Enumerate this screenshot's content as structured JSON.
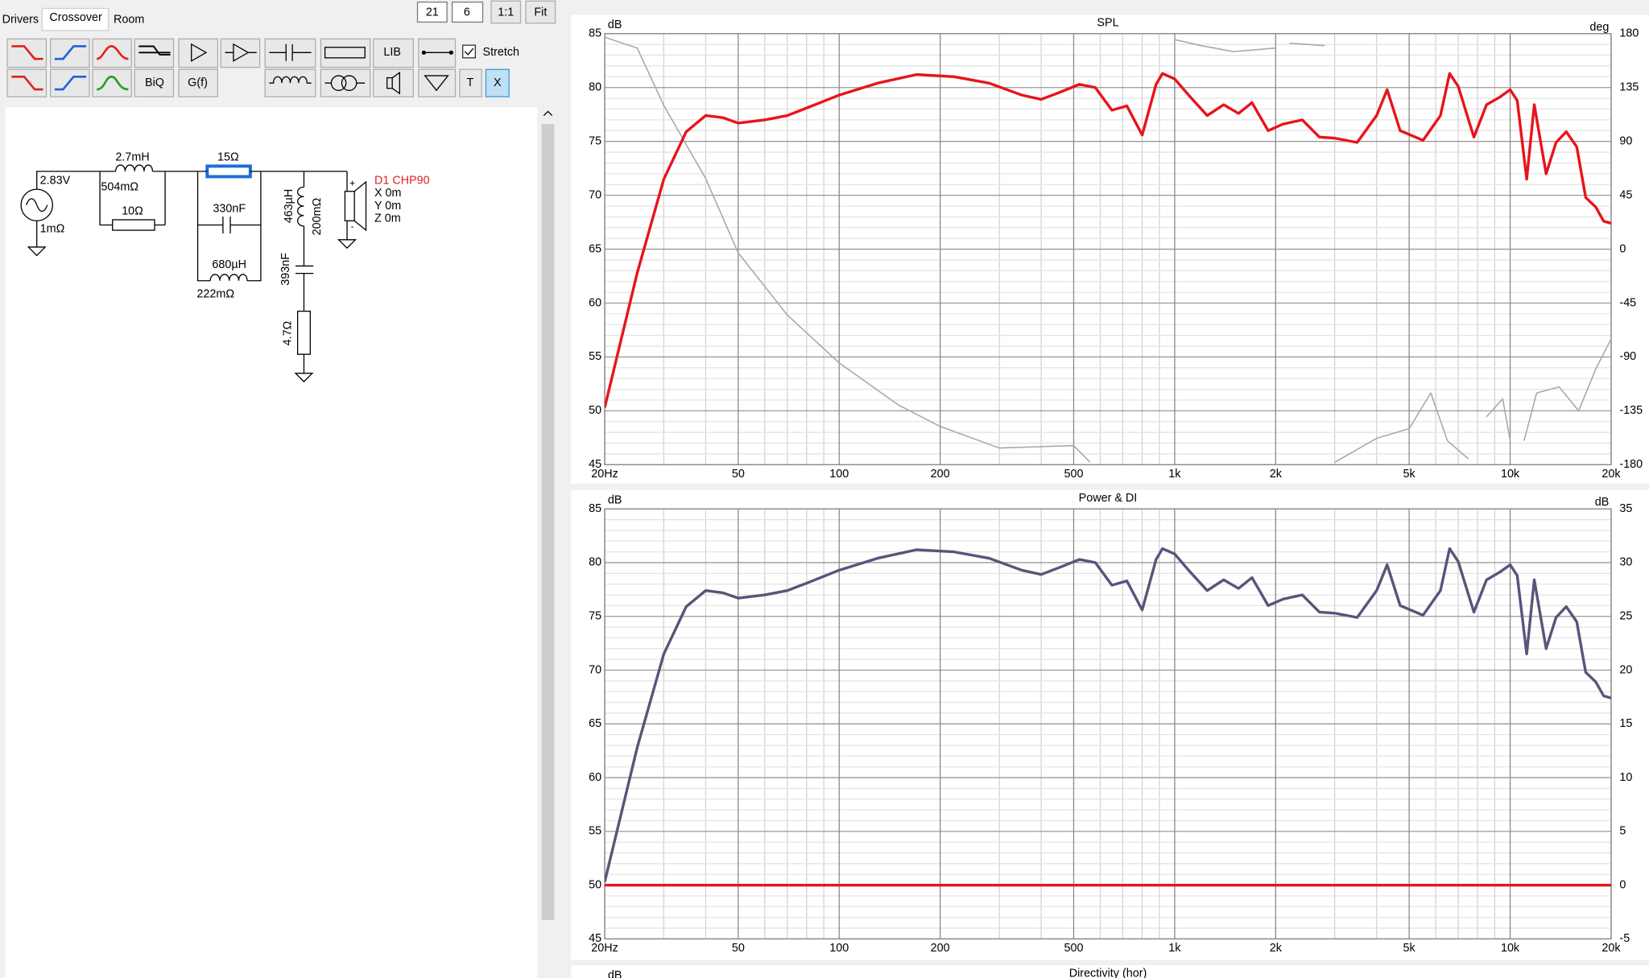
{
  "tabs": [
    "Drivers",
    "Crossover",
    "Room"
  ],
  "toolbar": {
    "inputs": [
      "21",
      "6"
    ],
    "buttons": [
      "1:1",
      "Fit"
    ],
    "tool_labels": [
      "LIB",
      "BiQ",
      "G(f)",
      "T",
      "X"
    ],
    "checkbox": "Stretch"
  },
  "circuit": {
    "source": "2.83V",
    "source_r": "1mΩ",
    "l1": "2.7mH",
    "l1_r": "504mΩ",
    "r1": "10Ω",
    "r2": "15Ω",
    "c1": "330nF",
    "l2": "680µH",
    "l2_r": "222mΩ",
    "l3": "463µH",
    "l3_r": "200mΩ",
    "c2": "393nF",
    "r3": "4.7Ω",
    "driver": "D1 CHP90",
    "pos": [
      "X 0m",
      "Y 0m",
      "Z 0m"
    ]
  },
  "chart_data": [
    {
      "type": "line",
      "title": "SPL",
      "y_unit": "dB",
      "y2_unit": "deg",
      "xscale": "log",
      "xlim": [
        20,
        20000
      ],
      "xticks": [
        {
          "value": 20,
          "label": "20Hz"
        },
        50,
        100,
        200,
        500,
        {
          "value": 1000,
          "label": "1k"
        },
        {
          "value": 2000,
          "label": "2k"
        },
        {
          "value": 5000,
          "label": "5k"
        },
        {
          "value": 10000,
          "label": "10k"
        },
        {
          "value": 20000,
          "label": "20k"
        }
      ],
      "ylim": [
        45,
        85
      ],
      "yticks": [
        45,
        50,
        55,
        60,
        65,
        70,
        75,
        80,
        85
      ],
      "y2lim": [
        -180,
        180
      ],
      "y2ticks": [
        -180,
        -135,
        -90,
        -45,
        0,
        45,
        90,
        135,
        180
      ],
      "grid": true,
      "minor_grid": true,
      "series": [
        {
          "color": "#a8a8a8",
          "axis": "y2",
          "x": [
            20,
            25,
            30,
            40,
            50,
            70,
            100,
            150,
            200,
            300,
            500,
            560,
            600,
            1000,
            1200,
            1500,
            2000,
            2100,
            2200,
            2800,
            2900,
            3000,
            4000,
            5000,
            5800,
            6500,
            7500,
            8000,
            8500,
            9500,
            10000,
            10500,
            11000,
            12000,
            14000,
            16000,
            18000,
            20000
          ],
          "values": [
            177,
            168,
            120,
            59,
            -3,
            -55,
            -95,
            -130,
            -148,
            -166,
            -164,
            -178,
            null,
            175,
            170,
            165,
            168,
            null,
            172,
            170,
            null,
            -178,
            -158,
            -150,
            -120,
            -160,
            -175,
            null,
            -140,
            -125,
            -160,
            null,
            -160,
            -120,
            -115,
            -135,
            -100,
            -75
          ]
        },
        {
          "color": "#e8141b",
          "x": [
            20,
            25,
            30,
            35,
            40,
            45,
            50,
            60,
            70,
            80,
            100,
            130,
            170,
            220,
            280,
            350,
            400,
            450,
            520,
            580,
            650,
            720,
            800,
            880,
            920,
            1000,
            1100,
            1250,
            1400,
            1550,
            1700,
            1900,
            2100,
            2400,
            2700,
            3000,
            3500,
            4000,
            4300,
            4700,
            5500,
            6200,
            6600,
            7000,
            7800,
            8500,
            9300,
            10000,
            10500,
            11200,
            11800,
            12800,
            13700,
            14700,
            15800,
            16800,
            18000,
            19000,
            20000
          ],
          "values": [
            50.3,
            62.8,
            71.5,
            75.9,
            77.4,
            77.2,
            76.7,
            77,
            77.4,
            78.1,
            79.3,
            80.4,
            81.2,
            81,
            80.4,
            79.3,
            78.9,
            79.5,
            80.3,
            80,
            77.9,
            78.3,
            75.6,
            80.3,
            81.3,
            80.8,
            79.3,
            77.4,
            78.4,
            77.6,
            78.6,
            76,
            76.6,
            77,
            75.4,
            75.3,
            74.9,
            77.4,
            79.8,
            76,
            75.1,
            77.4,
            81.3,
            80.1,
            75.4,
            78.4,
            79.1,
            79.8,
            78.8,
            71.5,
            78.4,
            72,
            74.9,
            75.9,
            74.5,
            69.8,
            68.9,
            67.6,
            67.4
          ]
        }
      ]
    },
    {
      "type": "line",
      "title": "Power & DI",
      "y_unit": "dB",
      "y2_unit": "dB",
      "xscale": "log",
      "xlim": [
        20,
        20000
      ],
      "xticks": [
        {
          "value": 20,
          "label": "20Hz"
        },
        50,
        100,
        200,
        500,
        {
          "value": 1000,
          "label": "1k"
        },
        {
          "value": 2000,
          "label": "2k"
        },
        {
          "value": 5000,
          "label": "5k"
        },
        {
          "value": 10000,
          "label": "10k"
        },
        {
          "value": 20000,
          "label": "20k"
        }
      ],
      "ylim": [
        45,
        85
      ],
      "yticks": [
        45,
        50,
        55,
        60,
        65,
        70,
        75,
        80,
        85
      ],
      "y2lim": [
        -5,
        35
      ],
      "y2ticks": [
        -5,
        0,
        5,
        10,
        15,
        20,
        25,
        30,
        35
      ],
      "grid": true,
      "minor_grid": true,
      "series": [
        {
          "color": "#e8141b",
          "axis": "y2",
          "x": [
            20,
            20000
          ],
          "values": [
            0,
            0
          ]
        },
        {
          "color": "#56567a",
          "x": [
            20,
            25,
            30,
            35,
            40,
            45,
            50,
            60,
            70,
            80,
            100,
            130,
            170,
            220,
            280,
            350,
            400,
            450,
            520,
            580,
            650,
            720,
            800,
            880,
            920,
            1000,
            1100,
            1250,
            1400,
            1550,
            1700,
            1900,
            2100,
            2400,
            2700,
            3000,
            3500,
            4000,
            4300,
            4700,
            5500,
            6200,
            6600,
            7000,
            7800,
            8500,
            9300,
            10000,
            10500,
            11200,
            11800,
            12800,
            13700,
            14700,
            15800,
            16800,
            18000,
            19000,
            20000
          ],
          "values": [
            50.3,
            62.8,
            71.5,
            75.9,
            77.4,
            77.2,
            76.7,
            77,
            77.4,
            78.1,
            79.3,
            80.4,
            81.2,
            81,
            80.4,
            79.3,
            78.9,
            79.5,
            80.3,
            80,
            77.9,
            78.3,
            75.6,
            80.3,
            81.3,
            80.8,
            79.3,
            77.4,
            78.4,
            77.6,
            78.6,
            76,
            76.6,
            77,
            75.4,
            75.3,
            74.9,
            77.4,
            79.8,
            76,
            75.1,
            77.4,
            81.3,
            80.1,
            75.4,
            78.4,
            79.1,
            79.8,
            78.8,
            71.5,
            78.4,
            72,
            74.9,
            75.9,
            74.5,
            69.8,
            68.9,
            67.6,
            67.4
          ]
        }
      ]
    },
    {
      "title": "Directivity (hor)",
      "y_unit": "dB"
    }
  ]
}
